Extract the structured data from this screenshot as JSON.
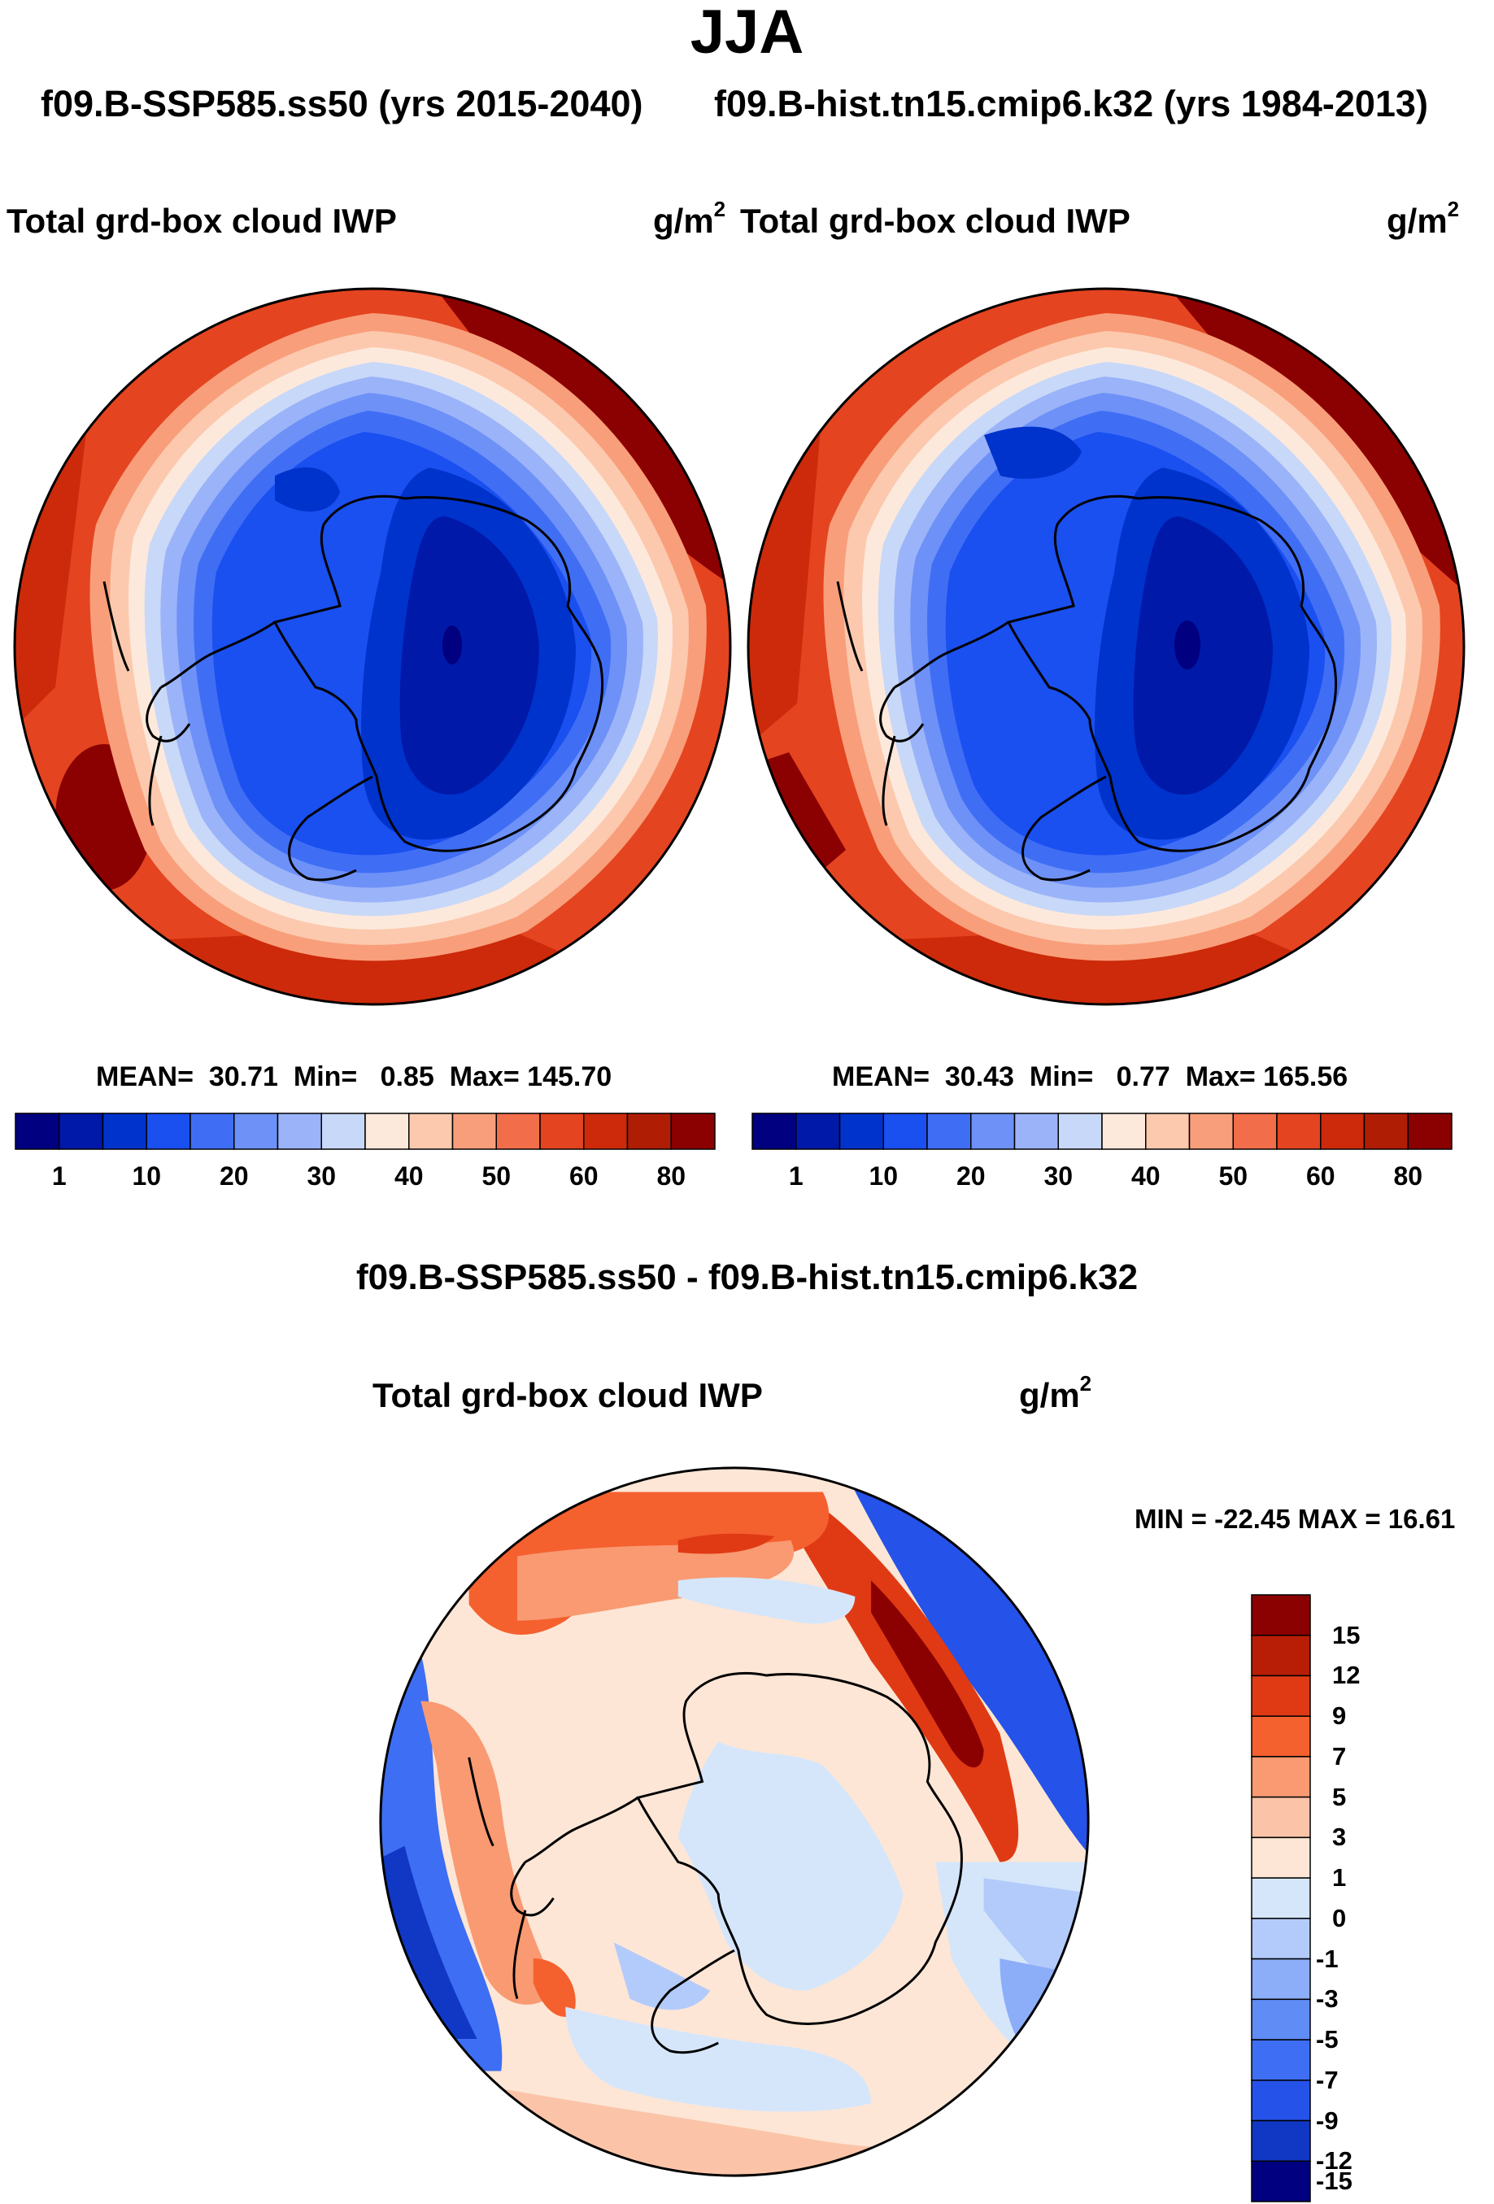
{
  "title": "JJA",
  "subtitle_left": "f09.B-SSP585.ss50 (yrs 2015-2040)",
  "subtitle_right": "f09.B-hist.tn15.cmip6.k32 (yrs 1984-2013)",
  "panels": [
    {
      "label": "Total grd-box cloud IWP",
      "units_base": "g/m",
      "units_exp": "2",
      "mean_label": "MEAN=",
      "mean_value": "30.71",
      "min_label": "Min=",
      "min_value": "0.85",
      "max_label": "Max=",
      "max_value": "145.70"
    },
    {
      "label": "Total grd-box cloud IWP",
      "units_base": "g/m",
      "units_exp": "2",
      "mean_label": "MEAN=",
      "mean_value": "30.43",
      "min_label": "Min=",
      "min_value": "0.77",
      "max_label": "Max=",
      "max_value": "165.56"
    }
  ],
  "abs_colorbar": {
    "colors": [
      "#000080",
      "#0019a8",
      "#0033cc",
      "#1a4ff0",
      "#3f6ef5",
      "#6d91f7",
      "#9bb3f8",
      "#c8d8f8",
      "#fde9dc",
      "#fcc9ae",
      "#f99e7a",
      "#f26e4a",
      "#e44420",
      "#cc2a0a",
      "#b01d05",
      "#8b0000"
    ],
    "tick_labels": [
      "1",
      "10",
      "20",
      "30",
      "40",
      "50",
      "60",
      "80"
    ]
  },
  "diff_title": "f09.B-SSP585.ss50 - f09.B-hist.tn15.cmip6.k32",
  "diff_panel": {
    "label": "Total grd-box cloud IWP",
    "units_base": "g/m",
    "units_exp": "2",
    "minmax_text": "MIN = -22.45 MAX =  16.61"
  },
  "diff_colorbar": {
    "colors_top_to_bottom": [
      "#8b0000",
      "#b81d05",
      "#e03a14",
      "#f5602f",
      "#f99a72",
      "#fbc4a8",
      "#fde6d6",
      "#d5e6fb",
      "#b3cbfa",
      "#8cadf8",
      "#5f8cf5",
      "#3e6ef3",
      "#2552e8",
      "#1038c4",
      "#000080"
    ],
    "tick_labels": [
      "15",
      "12",
      "9",
      "7",
      "5",
      "3",
      "1",
      "0",
      "-1",
      "-3",
      "-5",
      "-7",
      "-9",
      "-12",
      "-15"
    ]
  },
  "colors": {
    "continent_outline": "#000000",
    "background": "#ffffff"
  }
}
